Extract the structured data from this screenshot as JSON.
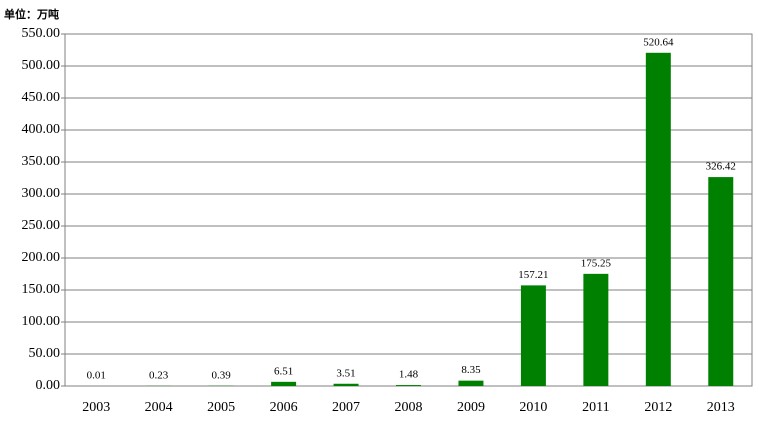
{
  "chart_data": {
    "type": "bar",
    "unit_label": "单位：万吨",
    "categories": [
      "2003",
      "2004",
      "2005",
      "2006",
      "2007",
      "2008",
      "2009",
      "2010",
      "2011",
      "2012",
      "2013"
    ],
    "values": [
      0.01,
      0.23,
      0.39,
      6.51,
      3.51,
      1.48,
      8.35,
      157.21,
      175.25,
      520.64,
      326.42
    ],
    "color": "#008000",
    "ylim": [
      0,
      550
    ],
    "yticks": [
      {
        "value": 0,
        "label": "0.00"
      },
      {
        "value": 50,
        "label": "50.00"
      },
      {
        "value": 100,
        "label": "100.00"
      },
      {
        "value": 150,
        "label": "150.00"
      },
      {
        "value": 200,
        "label": "200.00"
      },
      {
        "value": 250,
        "label": "250.00"
      },
      {
        "value": 300,
        "label": "300.00"
      },
      {
        "value": 350,
        "label": "350.00"
      },
      {
        "value": 400,
        "label": "400.00"
      },
      {
        "value": 450,
        "label": "450.00"
      },
      {
        "value": 500,
        "label": "500.00"
      },
      {
        "value": 550,
        "label": "550.00"
      }
    ],
    "grid": true
  }
}
